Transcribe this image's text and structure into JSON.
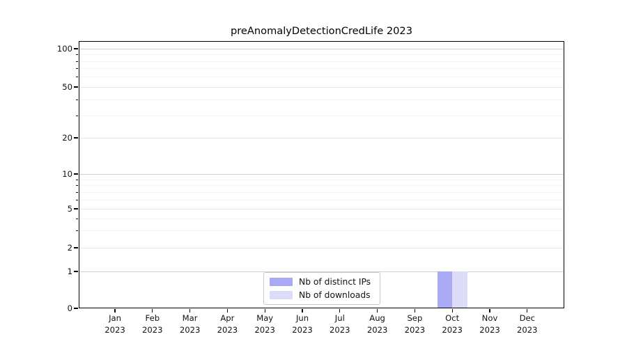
{
  "title": "preAnomalyDetectionCredLife 2023",
  "y_axis": {
    "tick_labels": [
      "100",
      "50",
      "20",
      "10",
      "5",
      "2",
      "1",
      "0"
    ]
  },
  "x_axis": {
    "months": [
      "Jan",
      "Feb",
      "Mar",
      "Apr",
      "May",
      "Jun",
      "Jul",
      "Aug",
      "Sep",
      "Oct",
      "Nov",
      "Dec"
    ],
    "year": "2023"
  },
  "legend": {
    "items": [
      {
        "label": "Nb of distinct IPs",
        "color": "#a9a9f4"
      },
      {
        "label": "Nb of downloads",
        "color": "#dcdcf8"
      }
    ]
  },
  "chart_data": {
    "type": "bar",
    "title": "preAnomalyDetectionCredLife 2023",
    "categories": [
      "Jan 2023",
      "Feb 2023",
      "Mar 2023",
      "Apr 2023",
      "May 2023",
      "Jun 2023",
      "Jul 2023",
      "Aug 2023",
      "Sep 2023",
      "Oct 2023",
      "Nov 2023",
      "Dec 2023"
    ],
    "series": [
      {
        "name": "Nb of distinct IPs",
        "color": "#a9a9f4",
        "values": [
          0,
          0,
          0,
          0,
          0,
          0,
          0,
          0,
          0,
          1,
          0,
          0
        ]
      },
      {
        "name": "Nb of downloads",
        "color": "#dcdcf8",
        "values": [
          0,
          0,
          0,
          0,
          0,
          0,
          0,
          0,
          0,
          1,
          0,
          0
        ]
      }
    ],
    "yscale": "log-above-1-with-zero-baseline",
    "y_ticks": [
      0,
      1,
      2,
      5,
      10,
      20,
      50,
      100
    ],
    "ylim": [
      0,
      115
    ],
    "grid": true,
    "legend_position": "lower center"
  }
}
